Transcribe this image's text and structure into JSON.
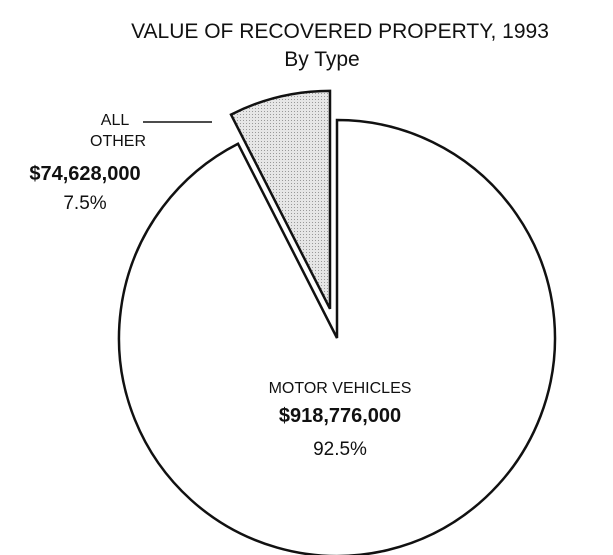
{
  "chart_data": {
    "type": "pie",
    "title": "VALUE OF RECOVERED PROPERTY, 1993",
    "subtitle": "By Type",
    "categories": [
      "MOTOR VEHICLES",
      "ALL OTHER"
    ],
    "values": [
      92.5,
      7.5
    ],
    "value_labels": [
      "92.5%",
      "7.5%"
    ],
    "amounts": [
      918776000,
      74628000
    ],
    "amount_labels": [
      "$918,776,000",
      "$74,628,000"
    ],
    "colors": [
      "#ffffff",
      "#d9d9d9"
    ]
  }
}
